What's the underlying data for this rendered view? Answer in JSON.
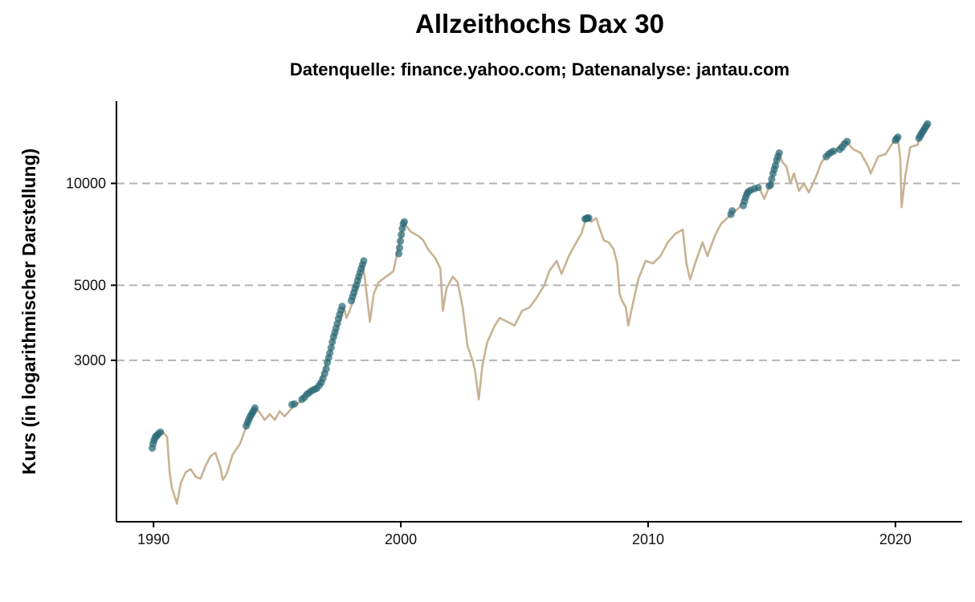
{
  "chart_data": {
    "type": "line",
    "title": "Allzeithochs Dax 30",
    "subtitle": "Datenquelle: finance.yahoo.com; Datenanalyse: jantau.com",
    "xlabel": "",
    "ylabel": "Kurs (in logarithmischer Darstellung)",
    "y_scale": "log",
    "xlim": [
      1988.5,
      2022.7
    ],
    "ylim": [
      1000,
      17500
    ],
    "x_ticks": [
      1990,
      2000,
      2010,
      2020
    ],
    "x_tick_labels": [
      "1990",
      "2000",
      "2010",
      "2020"
    ],
    "y_ticks": [
      3000,
      5000,
      10000
    ],
    "y_tick_labels": [
      "3000",
      "5000",
      "10000"
    ],
    "grid": "horizontal dashed at y ticks",
    "legend": "none",
    "colors": {
      "price_line": "#c9b294",
      "all_time_high": "#2b6b78"
    },
    "series": [
      {
        "type": "line",
        "points": [
          [
            1990.0,
            1750
          ],
          [
            1990.2,
            1820
          ],
          [
            1990.35,
            1850
          ],
          [
            1990.55,
            1780
          ],
          [
            1990.65,
            1400
          ],
          [
            1990.75,
            1250
          ],
          [
            1990.85,
            1190
          ],
          [
            1990.95,
            1130
          ],
          [
            1991.1,
            1300
          ],
          [
            1991.3,
            1400
          ],
          [
            1991.5,
            1430
          ],
          [
            1991.7,
            1360
          ],
          [
            1991.9,
            1340
          ],
          [
            1992.1,
            1460
          ],
          [
            1992.3,
            1560
          ],
          [
            1992.5,
            1600
          ],
          [
            1992.7,
            1450
          ],
          [
            1992.8,
            1330
          ],
          [
            1992.95,
            1380
          ],
          [
            1993.2,
            1580
          ],
          [
            1993.5,
            1700
          ],
          [
            1993.8,
            1960
          ],
          [
            1993.95,
            2050
          ],
          [
            1994.1,
            2180
          ],
          [
            1994.3,
            2100
          ],
          [
            1994.5,
            2000
          ],
          [
            1994.7,
            2080
          ],
          [
            1994.9,
            2000
          ],
          [
            1995.1,
            2120
          ],
          [
            1995.3,
            2050
          ],
          [
            1995.5,
            2130
          ],
          [
            1995.7,
            2210
          ],
          [
            1995.9,
            2250
          ],
          [
            1996.1,
            2380
          ],
          [
            1996.4,
            2460
          ],
          [
            1996.7,
            2540
          ],
          [
            1996.9,
            2800
          ],
          [
            1997.1,
            3100
          ],
          [
            1997.3,
            3500
          ],
          [
            1997.5,
            3850
          ],
          [
            1997.7,
            4300
          ],
          [
            1997.8,
            4000
          ],
          [
            1997.9,
            4150
          ],
          [
            1998.1,
            4550
          ],
          [
            1998.3,
            5200
          ],
          [
            1998.45,
            5850
          ],
          [
            1998.55,
            5200
          ],
          [
            1998.75,
            3900
          ],
          [
            1998.9,
            4700
          ],
          [
            1999.1,
            5100
          ],
          [
            1999.4,
            5300
          ],
          [
            1999.7,
            5500
          ],
          [
            1999.85,
            6200
          ],
          [
            2000.0,
            7000
          ],
          [
            2000.15,
            7600
          ],
          [
            2000.4,
            7200
          ],
          [
            2000.7,
            7000
          ],
          [
            2000.9,
            6800
          ],
          [
            2001.1,
            6400
          ],
          [
            2001.4,
            6000
          ],
          [
            2001.6,
            5600
          ],
          [
            2001.7,
            4200
          ],
          [
            2001.85,
            4900
          ],
          [
            2002.1,
            5300
          ],
          [
            2002.3,
            5100
          ],
          [
            2002.5,
            4300
          ],
          [
            2002.7,
            3300
          ],
          [
            2002.9,
            3000
          ],
          [
            2003.0,
            2800
          ],
          [
            2003.15,
            2300
          ],
          [
            2003.3,
            2900
          ],
          [
            2003.5,
            3400
          ],
          [
            2003.8,
            3800
          ],
          [
            2004.0,
            4000
          ],
          [
            2004.3,
            3900
          ],
          [
            2004.6,
            3800
          ],
          [
            2004.9,
            4200
          ],
          [
            2005.2,
            4300
          ],
          [
            2005.5,
            4600
          ],
          [
            2005.8,
            5000
          ],
          [
            2006.0,
            5500
          ],
          [
            2006.3,
            5900
          ],
          [
            2006.5,
            5400
          ],
          [
            2006.8,
            6100
          ],
          [
            2007.0,
            6500
          ],
          [
            2007.3,
            7100
          ],
          [
            2007.5,
            7900
          ],
          [
            2007.7,
            7700
          ],
          [
            2007.9,
            7900
          ],
          [
            2008.0,
            7500
          ],
          [
            2008.2,
            6800
          ],
          [
            2008.4,
            6700
          ],
          [
            2008.6,
            6400
          ],
          [
            2008.75,
            5800
          ],
          [
            2008.85,
            4700
          ],
          [
            2008.95,
            4500
          ],
          [
            2009.1,
            4300
          ],
          [
            2009.2,
            3800
          ],
          [
            2009.35,
            4300
          ],
          [
            2009.6,
            5200
          ],
          [
            2009.9,
            5900
          ],
          [
            2010.2,
            5800
          ],
          [
            2010.5,
            6100
          ],
          [
            2010.8,
            6700
          ],
          [
            2011.1,
            7100
          ],
          [
            2011.4,
            7300
          ],
          [
            2011.55,
            5800
          ],
          [
            2011.7,
            5200
          ],
          [
            2011.9,
            5800
          ],
          [
            2012.2,
            6700
          ],
          [
            2012.4,
            6100
          ],
          [
            2012.7,
            7000
          ],
          [
            2012.95,
            7600
          ],
          [
            2013.2,
            7900
          ],
          [
            2013.45,
            8200
          ],
          [
            2013.7,
            8500
          ],
          [
            2013.95,
            9500
          ],
          [
            2014.2,
            9500
          ],
          [
            2014.5,
            9700
          ],
          [
            2014.7,
            9000
          ],
          [
            2014.9,
            9800
          ],
          [
            2015.1,
            11000
          ],
          [
            2015.28,
            12300
          ],
          [
            2015.45,
            11500
          ],
          [
            2015.6,
            11200
          ],
          [
            2015.75,
            10000
          ],
          [
            2015.9,
            10700
          ],
          [
            2016.1,
            9500
          ],
          [
            2016.3,
            10000
          ],
          [
            2016.5,
            9400
          ],
          [
            2016.8,
            10500
          ],
          [
            2017.0,
            11500
          ],
          [
            2017.3,
            12300
          ],
          [
            2017.6,
            12500
          ],
          [
            2017.85,
            13200
          ],
          [
            2018.0,
            13300
          ],
          [
            2018.3,
            12600
          ],
          [
            2018.6,
            12300
          ],
          [
            2018.9,
            11200
          ],
          [
            2019.0,
            10700
          ],
          [
            2019.3,
            12000
          ],
          [
            2019.6,
            12200
          ],
          [
            2019.9,
            13200
          ],
          [
            2020.1,
            13700
          ],
          [
            2020.2,
            11800
          ],
          [
            2020.25,
            8500
          ],
          [
            2020.4,
            10500
          ],
          [
            2020.6,
            12800
          ],
          [
            2020.9,
            13000
          ],
          [
            2021.0,
            13800
          ],
          [
            2021.2,
            14500
          ],
          [
            2021.3,
            15000
          ]
        ]
      },
      {
        "type": "scatter",
        "name": "",
        "points": [
          [
            1989.95,
            1650
          ],
          [
            1989.98,
            1700
          ],
          [
            1990.02,
            1740
          ],
          [
            1990.06,
            1770
          ],
          [
            1990.1,
            1790
          ],
          [
            1990.15,
            1800
          ],
          [
            1990.2,
            1820
          ],
          [
            1990.28,
            1840
          ],
          [
            1993.75,
            1920
          ],
          [
            1993.8,
            1960
          ],
          [
            1993.85,
            2000
          ],
          [
            1993.9,
            2040
          ],
          [
            1993.95,
            2070
          ],
          [
            1994.0,
            2100
          ],
          [
            1994.05,
            2130
          ],
          [
            1994.1,
            2170
          ],
          [
            1995.6,
            2220
          ],
          [
            1995.7,
            2230
          ],
          [
            1996.0,
            2300
          ],
          [
            1996.1,
            2330
          ],
          [
            1996.2,
            2380
          ],
          [
            1996.3,
            2410
          ],
          [
            1996.4,
            2440
          ],
          [
            1996.5,
            2460
          ],
          [
            1996.6,
            2480
          ],
          [
            1996.7,
            2530
          ],
          [
            1996.78,
            2580
          ],
          [
            1996.85,
            2650
          ],
          [
            1996.92,
            2740
          ],
          [
            1996.98,
            2830
          ],
          [
            1997.03,
            2950
          ],
          [
            1997.08,
            3050
          ],
          [
            1997.13,
            3150
          ],
          [
            1997.18,
            3270
          ],
          [
            1997.23,
            3400
          ],
          [
            1997.28,
            3520
          ],
          [
            1997.33,
            3620
          ],
          [
            1997.38,
            3730
          ],
          [
            1997.43,
            3850
          ],
          [
            1997.48,
            3980
          ],
          [
            1997.53,
            4100
          ],
          [
            1997.58,
            4220
          ],
          [
            1997.63,
            4330
          ],
          [
            1998.0,
            4500
          ],
          [
            1998.05,
            4620
          ],
          [
            1998.1,
            4750
          ],
          [
            1998.15,
            4880
          ],
          [
            1998.2,
            5000
          ],
          [
            1998.25,
            5150
          ],
          [
            1998.3,
            5300
          ],
          [
            1998.35,
            5450
          ],
          [
            1998.4,
            5600
          ],
          [
            1998.45,
            5750
          ],
          [
            1998.5,
            5900
          ],
          [
            1999.92,
            6200
          ],
          [
            1999.95,
            6450
          ],
          [
            1999.98,
            6750
          ],
          [
            2000.02,
            7050
          ],
          [
            2000.06,
            7350
          ],
          [
            2000.1,
            7600
          ],
          [
            2000.14,
            7700
          ],
          [
            2007.45,
            7850
          ],
          [
            2007.5,
            7880
          ],
          [
            2007.55,
            7900
          ],
          [
            2007.6,
            7900
          ],
          [
            2013.35,
            8100
          ],
          [
            2013.4,
            8300
          ],
          [
            2013.85,
            8600
          ],
          [
            2013.9,
            8850
          ],
          [
            2013.95,
            9100
          ],
          [
            2014.0,
            9300
          ],
          [
            2014.05,
            9450
          ],
          [
            2014.15,
            9550
          ],
          [
            2014.3,
            9650
          ],
          [
            2014.45,
            9720
          ],
          [
            2014.9,
            9820
          ],
          [
            2014.95,
            9900
          ],
          [
            2015.0,
            10300
          ],
          [
            2015.05,
            10700
          ],
          [
            2015.1,
            11000
          ],
          [
            2015.15,
            11300
          ],
          [
            2015.2,
            11700
          ],
          [
            2015.25,
            12000
          ],
          [
            2015.3,
            12300
          ],
          [
            2017.2,
            12000
          ],
          [
            2017.3,
            12200
          ],
          [
            2017.4,
            12350
          ],
          [
            2017.5,
            12450
          ],
          [
            2017.75,
            12600
          ],
          [
            2017.85,
            12800
          ],
          [
            2017.95,
            13100
          ],
          [
            2018.05,
            13300
          ],
          [
            2020.0,
            13400
          ],
          [
            2020.05,
            13550
          ],
          [
            2020.1,
            13700
          ],
          [
            2020.95,
            13600
          ],
          [
            2021.0,
            13800
          ],
          [
            2021.05,
            14000
          ],
          [
            2021.1,
            14200
          ],
          [
            2021.15,
            14400
          ],
          [
            2021.2,
            14600
          ],
          [
            2021.25,
            14800
          ],
          [
            2021.3,
            15000
          ]
        ]
      }
    ]
  }
}
